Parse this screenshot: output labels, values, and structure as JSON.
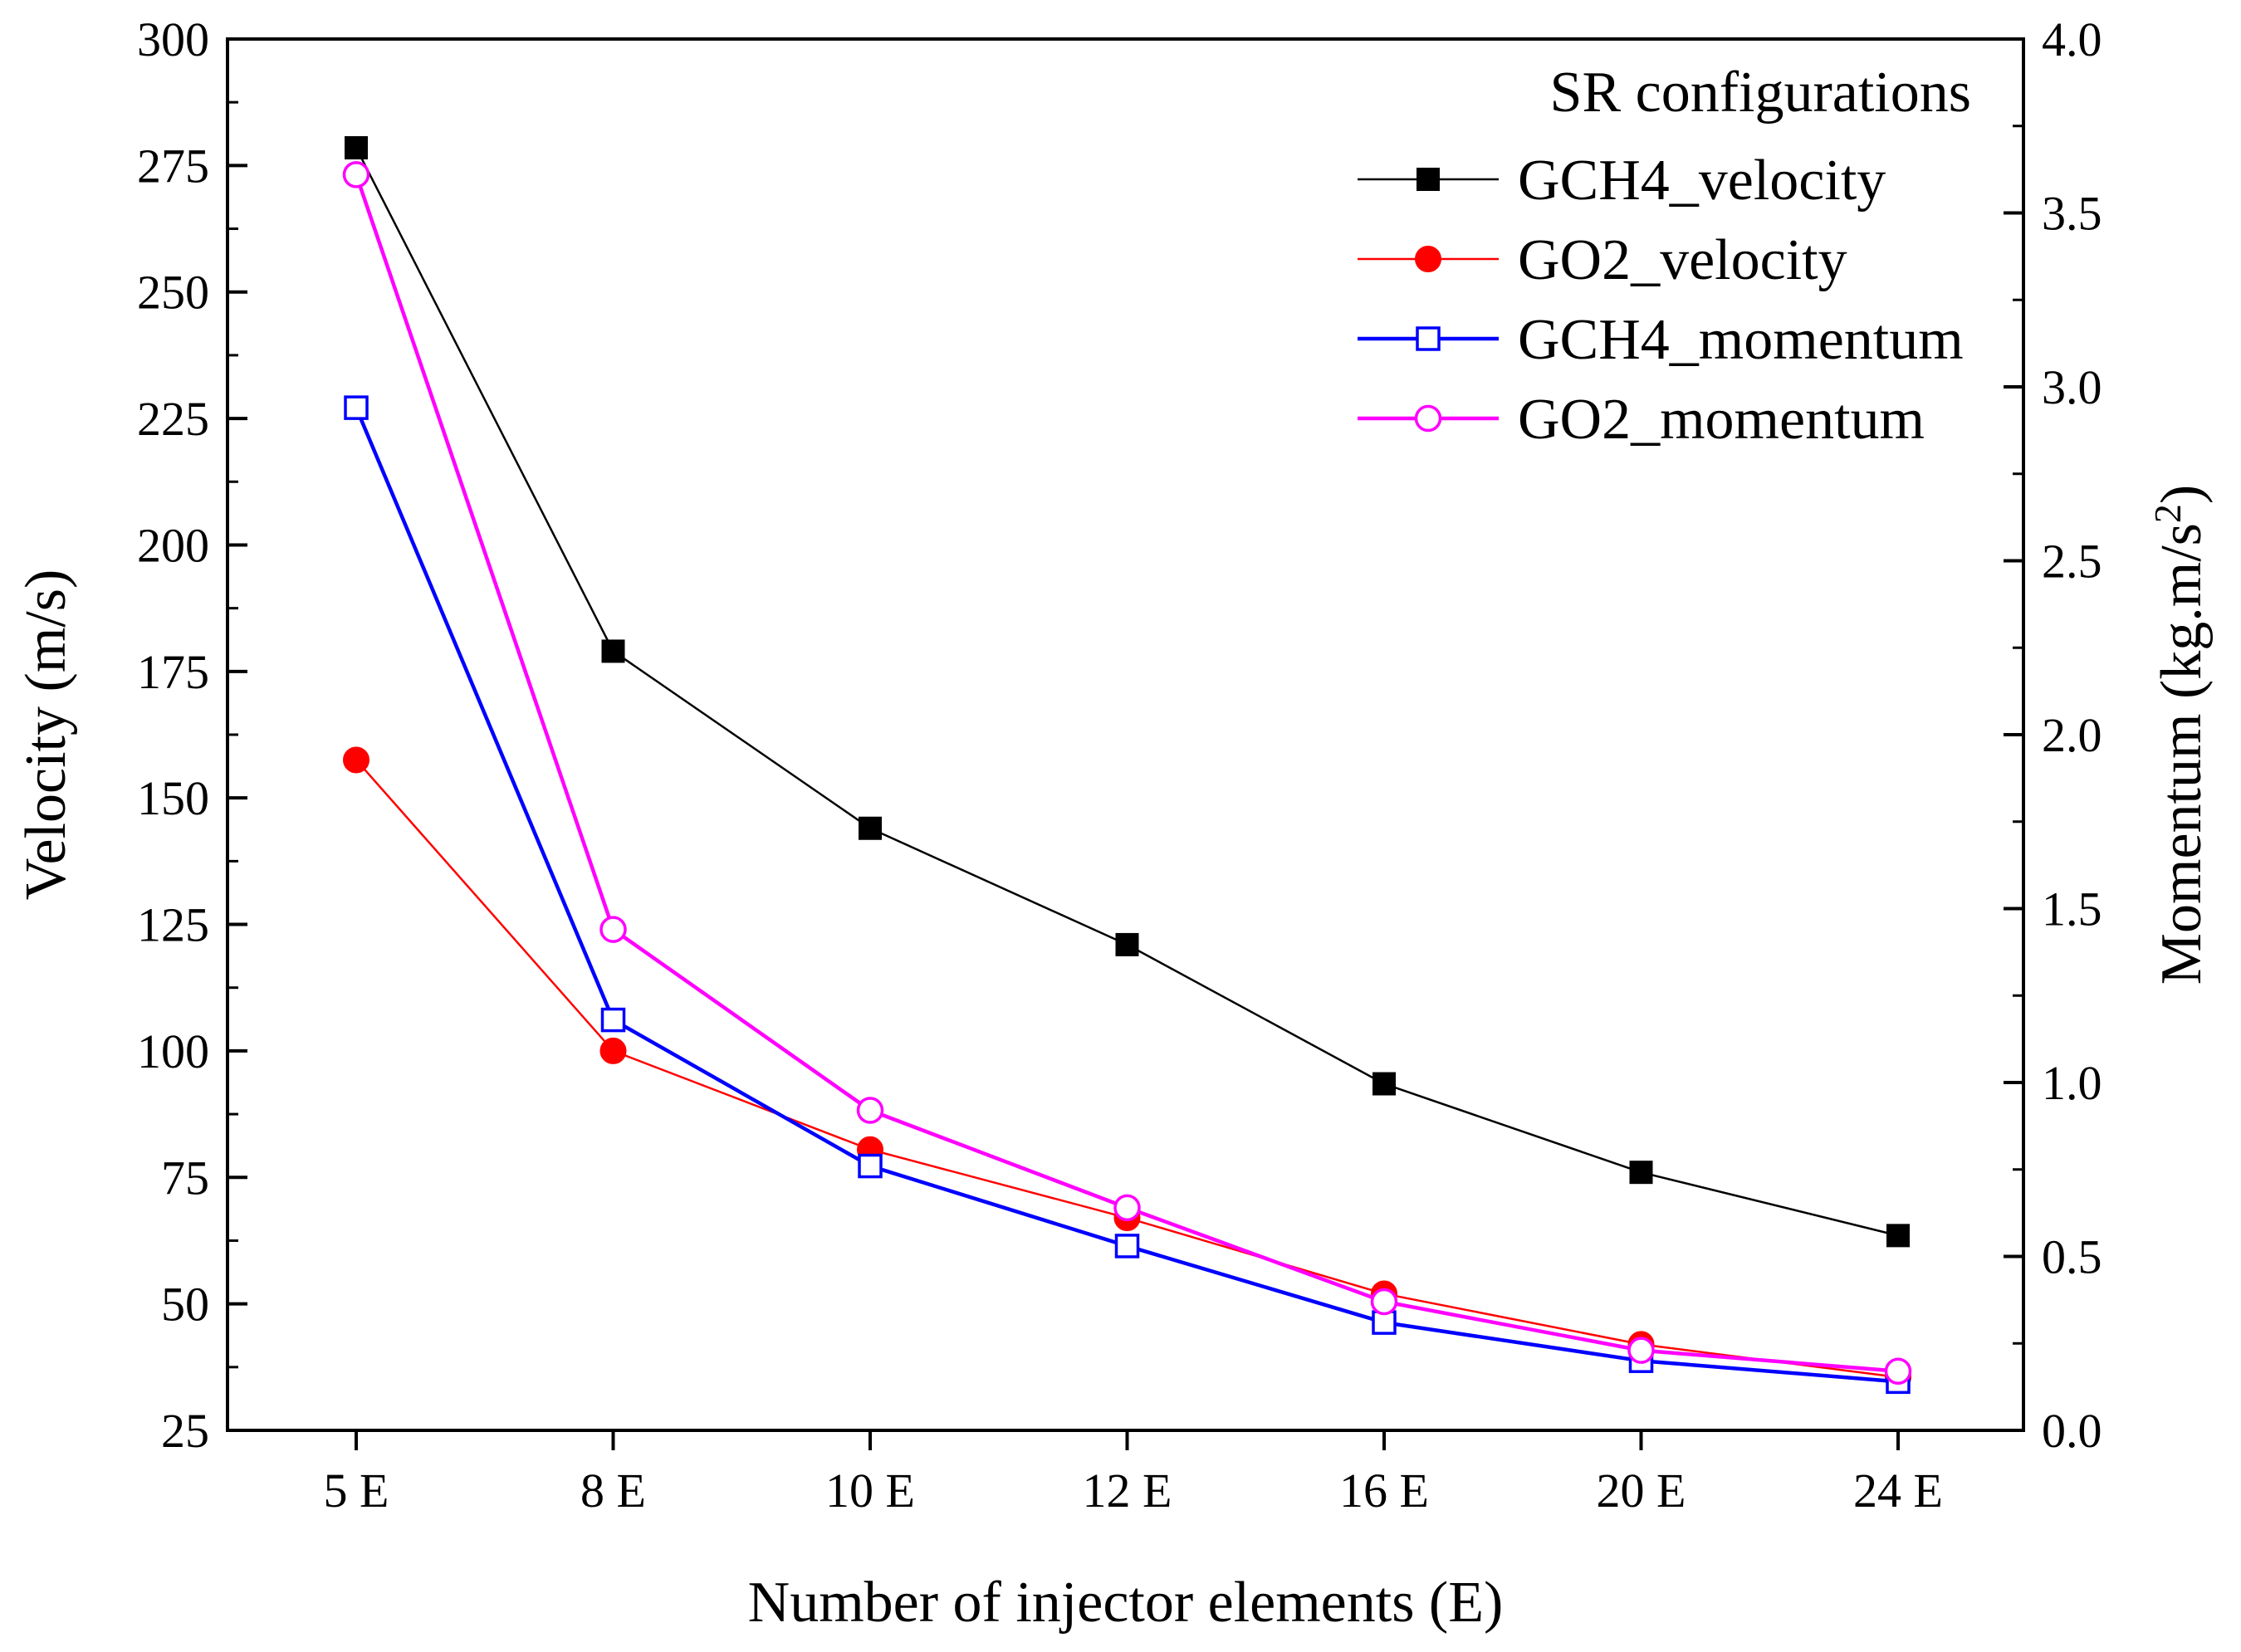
{
  "chart_data": {
    "type": "line",
    "title": "",
    "xlabel": "Number of injector elements (E)",
    "ylabel": "Velocity (m/s)",
    "y2label_main": "Momentum (kg.m/s",
    "y2label_sup": "2",
    "y2label_close": ")",
    "categories": [
      "5 E",
      "8 E",
      "10 E",
      "12 E",
      "16 E",
      "20 E",
      "24 E"
    ],
    "ylim": [
      25,
      300
    ],
    "yticks": [
      "25",
      "50",
      "75",
      "100",
      "125",
      "150",
      "175",
      "200",
      "225",
      "250",
      "275",
      "300"
    ],
    "y2lim": [
      0.0,
      4.0
    ],
    "y2ticks": [
      "0.0",
      "0.5",
      "1.0",
      "1.5",
      "2.0",
      "2.5",
      "3.0",
      "3.5",
      "4.0"
    ],
    "legend_title": "SR configurations",
    "legend_position": "top-right",
    "grid": false,
    "series": [
      {
        "name": "GCH4_velocity",
        "axis": "left",
        "color": "#000000",
        "marker": "filled-square",
        "values": [
          278.5,
          179.0,
          144.0,
          121.0,
          93.5,
          76.0,
          63.5
        ]
      },
      {
        "name": "GO2_velocity",
        "axis": "left",
        "color": "#ff0000",
        "marker": "filled-circle",
        "values": [
          157.5,
          100.0,
          80.5,
          67.0,
          52.0,
          42.0,
          35.5
        ]
      },
      {
        "name": "GCH4_momentum",
        "axis": "right",
        "color": "#0000ff",
        "marker": "open-square",
        "values": [
          2.94,
          1.18,
          0.76,
          0.53,
          0.31,
          0.2,
          0.14
        ]
      },
      {
        "name": "GO2_momentum",
        "axis": "right",
        "color": "#ff00ff",
        "marker": "open-circle",
        "values": [
          3.61,
          1.44,
          0.92,
          0.64,
          0.37,
          0.23,
          0.17
        ]
      }
    ]
  }
}
